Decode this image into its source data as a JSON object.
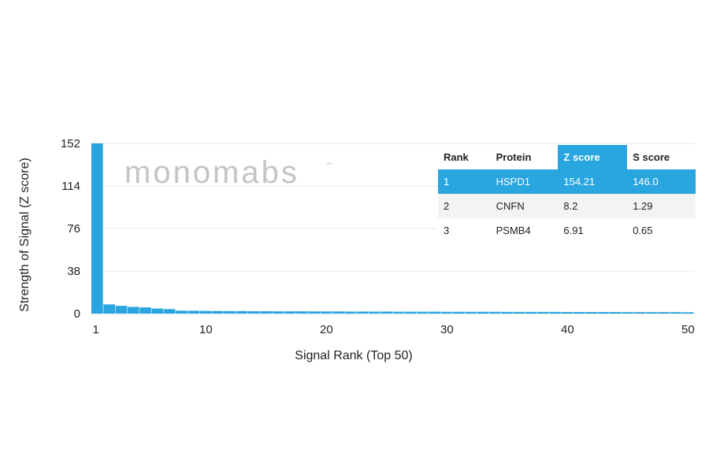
{
  "watermark": "monomabs",
  "watermark_tm": "™",
  "chart_data": {
    "type": "bar",
    "xlabel": "Signal Rank (Top 50)",
    "ylabel": "Strength of Signal (Z score)",
    "ylim": [
      0,
      152
    ],
    "yticks": [
      0,
      38,
      76,
      114,
      152
    ],
    "xticks": [
      1,
      10,
      20,
      30,
      40,
      50
    ],
    "xlim": [
      1,
      50
    ],
    "grid": true,
    "bar_color": "#29a6df",
    "x": [
      1,
      2,
      3,
      4,
      5,
      6,
      7,
      8,
      9,
      10,
      11,
      12,
      13,
      14,
      15,
      16,
      17,
      18,
      19,
      20,
      21,
      22,
      23,
      24,
      25,
      26,
      27,
      28,
      29,
      30,
      31,
      32,
      33,
      34,
      35,
      36,
      37,
      38,
      39,
      40,
      41,
      42,
      43,
      44,
      45,
      46,
      47,
      48,
      49,
      50
    ],
    "values": [
      154.21,
      8.2,
      6.91,
      6.0,
      5.5,
      4.5,
      4.0,
      2.6,
      2.5,
      2.4,
      2.3,
      2.2,
      2.2,
      2.1,
      2.1,
      2.0,
      2.0,
      2.0,
      1.9,
      1.9,
      1.9,
      1.8,
      1.8,
      1.8,
      1.8,
      1.7,
      1.7,
      1.7,
      1.7,
      1.6,
      1.6,
      1.6,
      1.6,
      1.6,
      1.5,
      1.5,
      1.5,
      1.5,
      1.5,
      1.4,
      1.4,
      1.4,
      1.4,
      1.4,
      1.3,
      1.3,
      1.3,
      1.3,
      1.3,
      1.2
    ]
  },
  "table": {
    "columns": [
      "Rank",
      "Protein",
      "Z score",
      "S score"
    ],
    "highlight_color": "#29a6df",
    "rows": [
      [
        "1",
        "HSPD1",
        "154.21",
        "146.0"
      ],
      [
        "2",
        "CNFN",
        "8.2",
        "1.29"
      ],
      [
        "3",
        "PSMB4",
        "6.91",
        "0.65"
      ]
    ]
  }
}
